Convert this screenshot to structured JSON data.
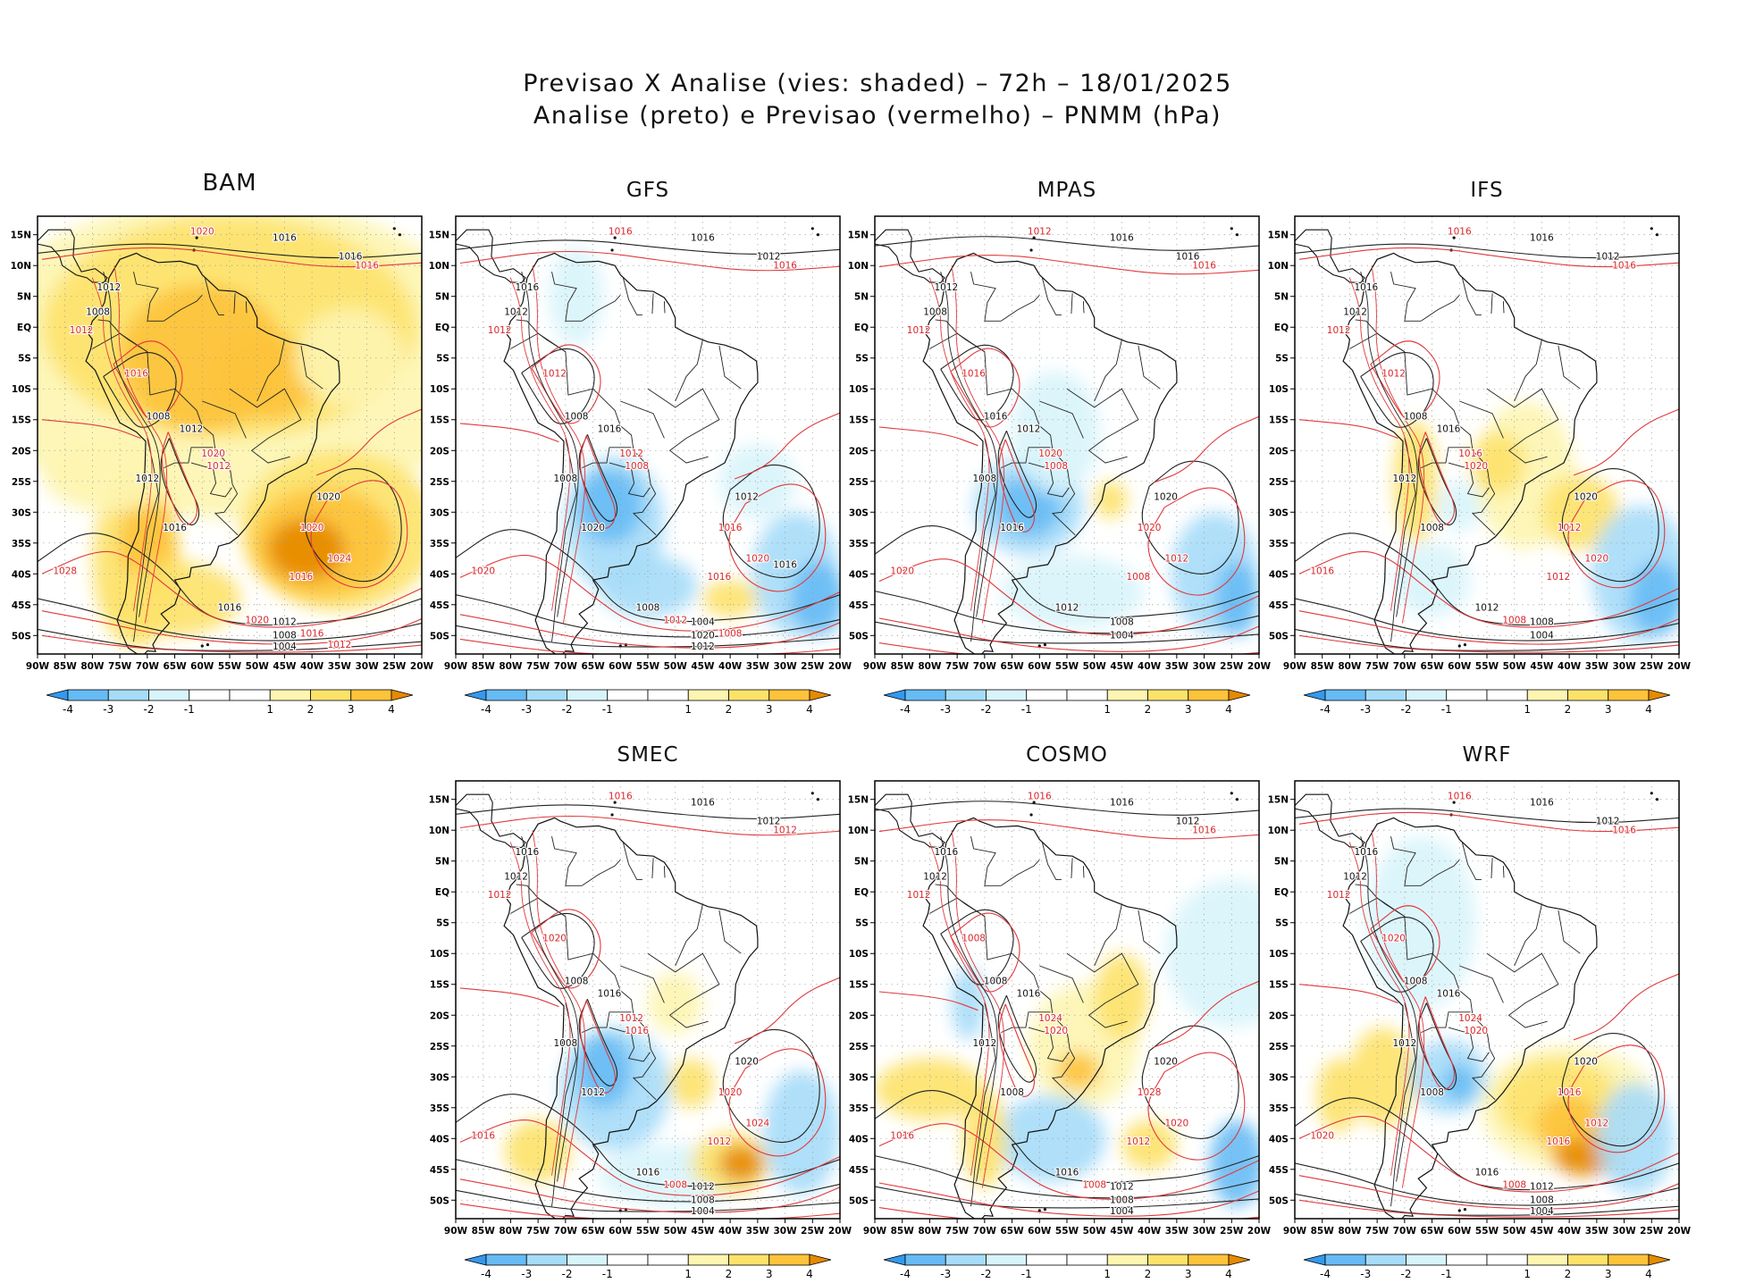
{
  "figure": {
    "title_line1": "Previsao X Analise (vies: shaded) – 72h – 18/01/2025",
    "title_line2": "Analise (preto) e Previsao (vermelho) – PNMM (hPa)"
  },
  "chart_data": {
    "type": "heatmap",
    "description_variable": "PNMM (hPa)",
    "lat_labels": [
      "15N",
      "10N",
      "5N",
      "EQ",
      "5S",
      "10S",
      "15S",
      "20S",
      "25S",
      "30S",
      "35S",
      "40S",
      "45S",
      "50S"
    ],
    "lon_labels": [
      "90W",
      "85W",
      "80W",
      "75W",
      "70W",
      "65W",
      "60W",
      "55W",
      "50W",
      "45W",
      "40W",
      "35W",
      "30W",
      "25W",
      "20W"
    ],
    "lat_range": [
      -53,
      18
    ],
    "lon_range": [
      -90,
      -20
    ],
    "colorbar": {
      "ticks": [
        "-4",
        "-3",
        "-2",
        "-1",
        "1",
        "2",
        "3",
        "4"
      ],
      "colors": [
        "#3399ee",
        "#66bbf5",
        "#a6dcf8",
        "#d8f4fb",
        "#ffffff",
        "#fdf5b0",
        "#fde26a",
        "#fdc33a",
        "#f9a000",
        "#e68a00"
      ]
    },
    "panels": [
      {
        "name": "BAM",
        "bias": "warm",
        "isobar_labels_black": [
          "1016",
          "1016",
          "1012",
          "1008",
          "1008",
          "1012",
          "1012",
          "1016",
          "1020",
          "1016",
          "1012",
          "1008",
          "1004"
        ],
        "isobar_labels_red": [
          "1020",
          "1016",
          "1012",
          "1016",
          "1012",
          "1020",
          "1020",
          "1024",
          "1028",
          "1016",
          "1020",
          "1016",
          "1012"
        ]
      },
      {
        "name": "GFS",
        "bias": "cool",
        "isobar_labels_black": [
          "1016",
          "1012",
          "1016",
          "1012",
          "1008",
          "1016",
          "1008",
          "1020",
          "1012",
          "1008",
          "1004",
          "1020",
          "1012",
          "1016"
        ],
        "isobar_labels_red": [
          "1016",
          "1016",
          "1012",
          "1012",
          "1008",
          "1012",
          "1016",
          "1020",
          "1020",
          "1016",
          "1012",
          "1008"
        ]
      },
      {
        "name": "MPAS",
        "bias": "cool",
        "isobar_labels_black": [
          "1016",
          "1016",
          "1012",
          "1008",
          "1016",
          "1012",
          "1008",
          "1016",
          "1020",
          "1012",
          "1008",
          "1004"
        ],
        "isobar_labels_red": [
          "1012",
          "1016",
          "1012",
          "1016",
          "1008",
          "1020",
          "1020",
          "1012",
          "1020",
          "1008"
        ]
      },
      {
        "name": "IFS",
        "bias": "mixed",
        "isobar_labels_black": [
          "1016",
          "1012",
          "1016",
          "1012",
          "1008",
          "1016",
          "1012",
          "1008",
          "1020",
          "1012",
          "1008",
          "1004"
        ],
        "isobar_labels_red": [
          "1016",
          "1016",
          "1012",
          "1012",
          "1020",
          "1016",
          "1012",
          "1020",
          "1016",
          "1012",
          "1008"
        ]
      },
      {
        "name": "SMEC",
        "bias": "cool",
        "isobar_labels_black": [
          "1016",
          "1012",
          "1016",
          "1012",
          "1008",
          "1016",
          "1008",
          "1012",
          "1020",
          "1016",
          "1012",
          "1008",
          "1004"
        ],
        "isobar_labels_red": [
          "1016",
          "1012",
          "1012",
          "1020",
          "1016",
          "1012",
          "1020",
          "1024",
          "1016",
          "1012",
          "1008"
        ]
      },
      {
        "name": "COSMO",
        "bias": "mixed",
        "isobar_labels_black": [
          "1016",
          "1012",
          "1016",
          "1012",
          "1008",
          "1016",
          "1012",
          "1008",
          "1020",
          "1016",
          "1012",
          "1008",
          "1004"
        ],
        "isobar_labels_red": [
          "1016",
          "1016",
          "1012",
          "1008",
          "1020",
          "1024",
          "1028",
          "1020",
          "1016",
          "1012",
          "1008"
        ]
      },
      {
        "name": "WRF",
        "bias": "warm",
        "isobar_labels_black": [
          "1016",
          "1012",
          "1016",
          "1012",
          "1008",
          "1016",
          "1012",
          "1008",
          "1020",
          "1016",
          "1012",
          "1008",
          "1004"
        ],
        "isobar_labels_red": [
          "1016",
          "1016",
          "1012",
          "1020",
          "1020",
          "1024",
          "1016",
          "1012",
          "1020",
          "1016",
          "1008"
        ]
      }
    ]
  }
}
